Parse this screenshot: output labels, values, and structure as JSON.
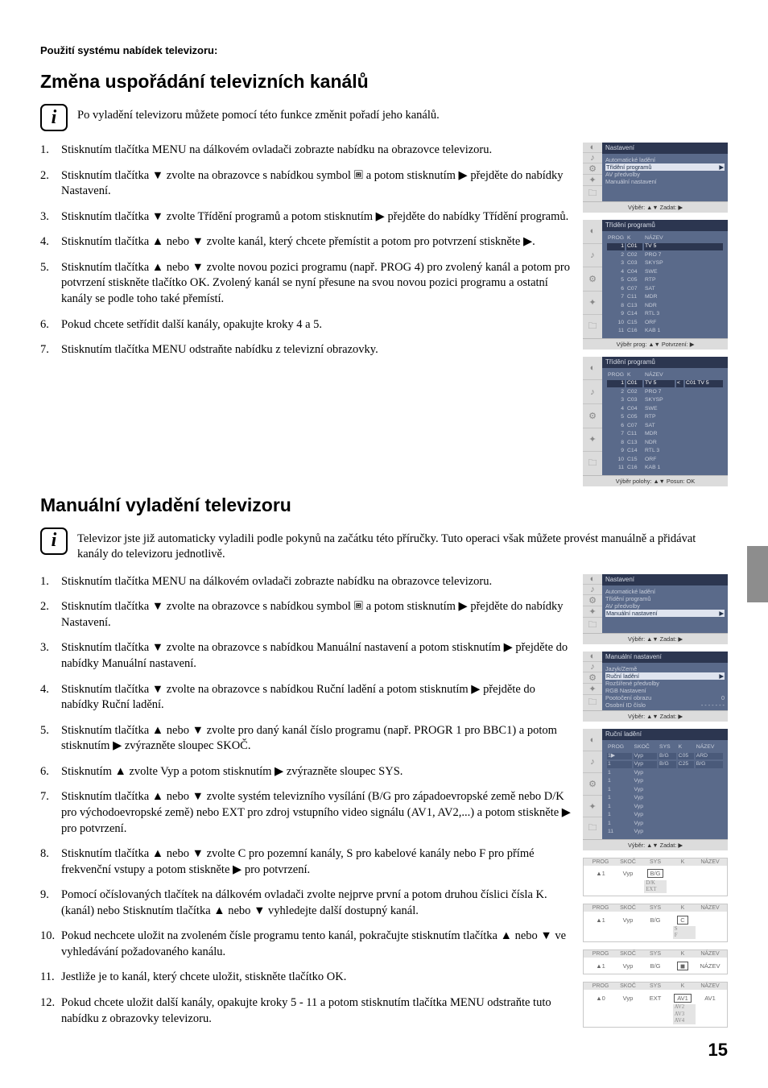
{
  "headerLine": "Použití systému nabídek televizoru:",
  "sectionA": {
    "title": "Změna uspořádání televizních kanálů",
    "intro": "Po vyladění televizoru můžete pomocí této funkce změnit pořadí jeho kanálů.",
    "steps": [
      "Stisknutím tlačítka MENU na dálkovém ovladači zobrazte nabídku na obrazovce televizoru.",
      "Stisknutím tlačítka ▼ zvolte na obrazovce s nabídkou symbol 🞖 a potom stisknutím ▶ přejděte do nabídky  Nastavení.",
      "Stisknutím tlačítka ▼ zvolte  Třídění programů  a potom stisknutím ▶ přejděte do nabídky Třídění programů.",
      "Stisknutím tlačítka ▲ nebo ▼ zvolte kanál, který chcete přemístit a potom pro potvrzení stiskněte ▶.",
      "Stisknutím tlačítka ▲ nebo ▼ zvolte novou pozici programu (např. PROG 4) pro zvolený kanál a potom pro potvrzení stiskněte tlačítko OK.  Zvolený kanál se nyní přesune na svou novou pozici programu a ostatní kanály se podle toho také přemístí.",
      "Pokud chcete setřídit další kanály, opakujte kroky 4 a 5.",
      "Stisknutím tlačítka MENU odstraňte nabídku z televizní obrazovky."
    ]
  },
  "sectionB": {
    "title": "Manuální vyladění televizoru",
    "intro": "Televizor jste již automaticky vyladili podle pokynů na začátku této příručky.  Tuto operaci však můžete provést manuálně a přidávat kanály do televizoru jednotlivě.",
    "steps": [
      "Stisknutím tlačítka MENU na dálkovém ovladači zobrazte nabídku na obrazovce televizoru.",
      "Stisknutím tlačítka ▼ zvolte na obrazovce s nabídkou symbol 🞖 a potom stisknutím ▶ přejděte do nabídky  Nastavení.",
      "Stisknutím tlačítka ▼ zvolte na obrazovce s nabídkou  Manuální nastavení  a potom stisknutím ▶ přejděte do nabídky  Manuální nastavení.",
      "Stisknutím tlačítka ▼ zvolte na obrazovce s nabídkou  Ruční ladění  a potom stisknutím ▶ přejděte do nabídky  Ruční ladění.",
      "Stisknutím tlačítka ▲ nebo ▼ zvolte pro daný kanál číslo programu (např. PROGR 1 pro BBC1) a potom stisknutím ▶ zvýrazněte sloupec  SKOČ.",
      "Stisknutím ▲ zvolte  Vyp  a potom stisknutím ▶ zvýrazněte sloupec  SYS.",
      "Stisknutím tlačítka ▲ nebo ▼ zvolte systém televizního vysílání (B/G pro západoevropské země nebo D/K pro východoevropské země) nebo  EXT  pro zdroj vstupního video signálu (AV1, AV2,...) a potom stiskněte ▶ pro potvrzení.",
      "Stisknutím tlačítka ▲ nebo ▼ zvolte  C  pro pozemní kanály,  S  pro kabelové kanály nebo  F  pro přímé frekvenční vstupy a potom stiskněte ▶ pro potvrzení.",
      "Pomocí očíslovaných tlačítek na dálkovém ovladači zvolte nejprve první a potom druhou číslici čísla  K.  (kanál) nebo Stisknutím tlačítka ▲ nebo ▼ vyhledejte další dostupný kanál.",
      "Pokud nechcete uložit na zvoleném čísle programu tento kanál, pokračujte stisknutím tlačítka ▲ nebo ▼ ve vyhledávání požadovaného kanálu.",
      "Jestliže je to kanál, který chcete uložit, stiskněte tlačítko OK.",
      "Pokud chcete uložit další kanály, opakujte kroky 5 - 11 a potom stisknutím tlačítka MENU odstraňte tuto nabídku z obrazovky televizoru."
    ]
  },
  "menus": {
    "m1": {
      "title": "Nastavení",
      "items": [
        "Automatické ladění",
        "Třídění programů",
        "AV předvolby",
        "Manuální nastavení"
      ],
      "selected": 1,
      "footer": "Výběr: ▲▼  Zadat: ▶"
    },
    "m2": {
      "title": "Třídění programů",
      "headers": [
        "PROG",
        "K",
        "NÁZEV"
      ],
      "rows": [
        [
          "1",
          "C01",
          "TV 5"
        ],
        [
          "2",
          "C02",
          "PRO 7"
        ],
        [
          "3",
          "C03",
          "SKYSP"
        ],
        [
          "4",
          "C04",
          "SWE"
        ],
        [
          "5",
          "C05",
          "RTP"
        ],
        [
          "6",
          "C07",
          "SAT"
        ],
        [
          "7",
          "C11",
          "MDR"
        ],
        [
          "8",
          "C13",
          "NDR"
        ],
        [
          "9",
          "C14",
          "RTL 3"
        ],
        [
          "10",
          "C15",
          "ORF"
        ],
        [
          "11",
          "C16",
          "KAB 1"
        ]
      ],
      "selRow": 0,
      "footer": "Výběr prog: ▲▼  Potvrzení: ▶"
    },
    "m3": {
      "title": "Třídění programů",
      "headers": [
        "PROG",
        "K",
        "NÁZEV"
      ],
      "rows": [
        [
          "1",
          "C01",
          "TV 5"
        ],
        [
          "2",
          "C02",
          "PRO 7"
        ],
        [
          "3",
          "C03",
          "SKYSP"
        ],
        [
          "4",
          "C04",
          "SWE"
        ],
        [
          "5",
          "C05",
          "RTP"
        ],
        [
          "6",
          "C07",
          "SAT"
        ],
        [
          "7",
          "C11",
          "MDR"
        ],
        [
          "8",
          "C13",
          "NDR"
        ],
        [
          "9",
          "C14",
          "RTL 3"
        ],
        [
          "10",
          "C15",
          "ORF"
        ],
        [
          "11",
          "C16",
          "KAB 1"
        ]
      ],
      "selRow": 0,
      "moving": "C01   TV 5",
      "footer": "Výběr polohy: ▲▼   Posun: OK"
    },
    "m4": {
      "title": "Nastavení",
      "items": [
        "Automatické ladění",
        "Třídění programů",
        "AV předvolby",
        "Manuální nastavení"
      ],
      "selected": 3,
      "footer": "Výběr: ▲▼  Zadat: ▶"
    },
    "m5": {
      "title": "Manuální nastavení",
      "items": [
        "Jazyk/Země",
        "Ruční ladění",
        "Rozšířené předvolby",
        "RGB Nastavení",
        "Pootočení obrazu",
        "Osobní ID číslo"
      ],
      "extras": [
        "",
        "▶",
        "",
        "",
        "0",
        "- - - - - - -"
      ],
      "selected": 1,
      "footer": "Výběr: ▲▼  Zadat: ▶"
    },
    "m6": {
      "title": "Ruční ladění",
      "headers": [
        "PROG",
        "SKOČ",
        "SYS",
        "K",
        "NÁZEV"
      ],
      "rows": [
        [
          "1▶",
          "Vyp",
          "B/G",
          "C05",
          "ARD"
        ],
        [
          "1",
          "Vyp",
          "B/G",
          "C25",
          "B/G"
        ],
        [
          "1",
          "Vyp",
          "",
          "",
          ""
        ],
        [
          "1",
          "Vyp",
          "",
          "",
          ""
        ],
        [
          "1",
          "Vyp",
          "",
          "",
          ""
        ],
        [
          "1",
          "Vyp",
          "",
          "",
          ""
        ],
        [
          "1",
          "Vyp",
          "",
          "",
          ""
        ],
        [
          "1",
          "Vyp",
          "",
          "",
          ""
        ],
        [
          "1",
          "Vyp",
          "",
          "",
          ""
        ],
        [
          "11",
          "Vyp",
          "",
          "",
          ""
        ]
      ],
      "footer": "Výběr: ▲▼  Zadat: ▶"
    },
    "stripHeaders": [
      "PROG",
      "SKOČ",
      "SYS",
      "K",
      "NÁZEV"
    ],
    "strip1": {
      "row": [
        "▲1",
        "Vyp",
        "B/G",
        "",
        ""
      ],
      "sel": 2,
      "drop": [
        "B/G",
        "D/K",
        "EXT"
      ]
    },
    "strip2": {
      "row": [
        "▲1",
        "Vyp",
        "B/G",
        "C",
        ""
      ],
      "sel": 3,
      "drop": [
        "C",
        "S",
        "F"
      ]
    },
    "strip3": {
      "row": [
        "▲1",
        "Vyp",
        "B/G",
        "◼︎",
        "NÁZEV"
      ],
      "sel": 3,
      "drop": [
        "NÁZEV"
      ]
    },
    "strip4": {
      "row": [
        "▲0",
        "Vyp",
        "EXT",
        "AV1",
        "AV1"
      ],
      "sel": 3,
      "drop": [
        "AV1",
        "AV2",
        "AV3",
        "AV4"
      ]
    }
  },
  "pageNum": "15"
}
